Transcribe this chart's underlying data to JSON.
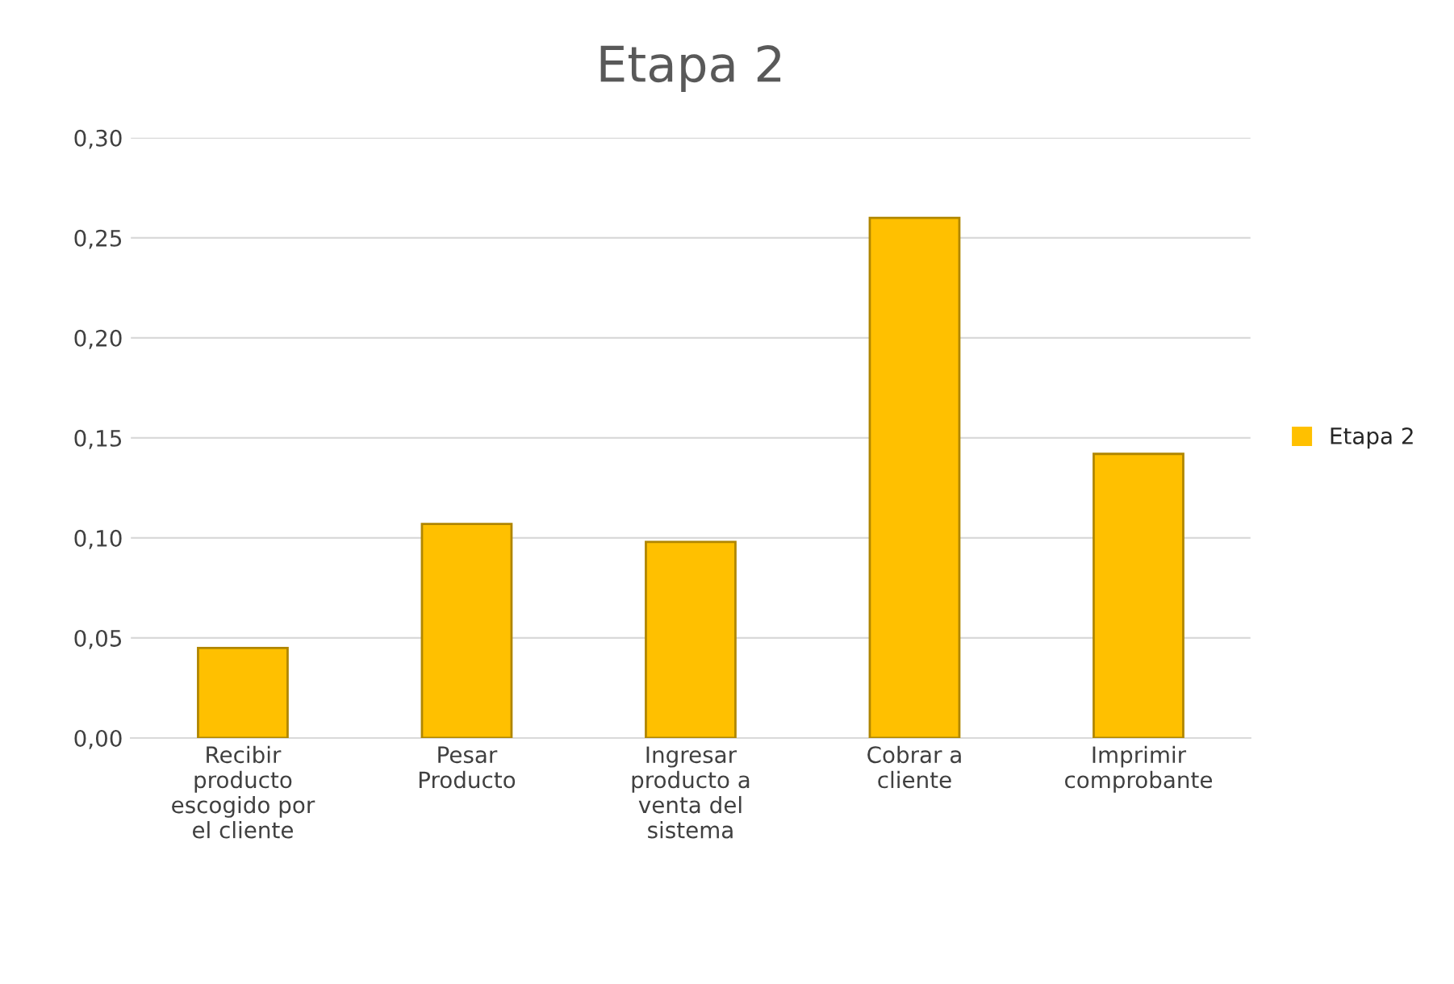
{
  "chart_data": {
    "type": "bar",
    "title": "Etapa 2",
    "categories": [
      "Recibir\nproducto\nescogido por\nel cliente",
      "Pesar\nProducto",
      "Ingresar\nproducto a\nventa del\nsistema",
      "Cobrar a\ncliente",
      "Imprimir\ncomprobante"
    ],
    "series": [
      {
        "name": "Etapa 2",
        "color": "#ffc000",
        "values": [
          0.045,
          0.107,
          0.098,
          0.26,
          0.142
        ]
      }
    ],
    "ylim": [
      0,
      0.3
    ],
    "yticks": [
      {
        "value": 0,
        "label": "0,00"
      },
      {
        "value": 0.05,
        "label": "0,05"
      },
      {
        "value": 0.1,
        "label": "0,10"
      },
      {
        "value": 0.15,
        "label": "0,15"
      },
      {
        "value": 0.2,
        "label": "0,20"
      },
      {
        "value": 0.25,
        "label": "0,25"
      },
      {
        "value": 0.3,
        "label": "0,30"
      }
    ],
    "grid": "y",
    "legend": "right"
  }
}
